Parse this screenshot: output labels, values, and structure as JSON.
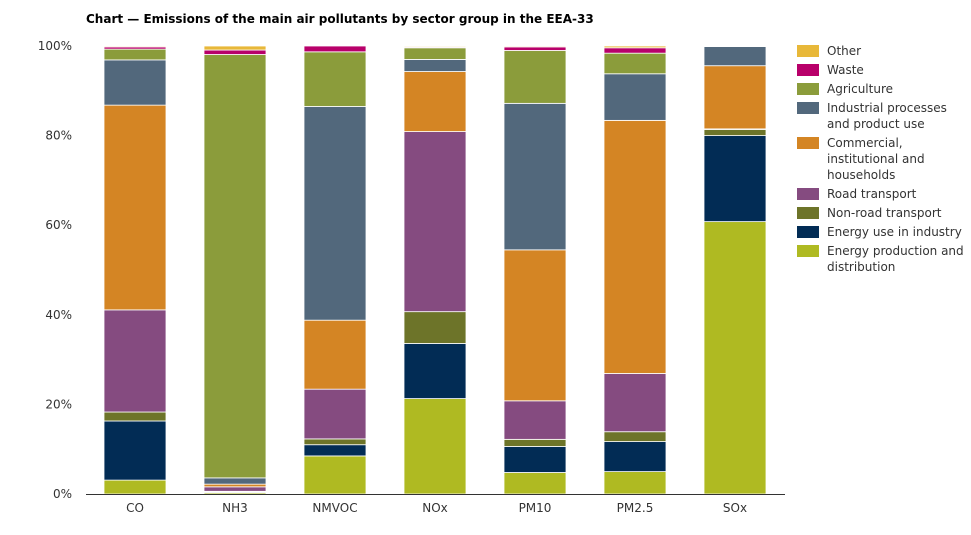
{
  "chart_data": {
    "type": "bar",
    "stacked": true,
    "title": "Chart — Emissions of the main air pollutants by sector group in the EEA-33",
    "xlabel": "",
    "ylabel": "",
    "ylim": [
      0,
      100
    ],
    "yticks": [
      "0%",
      "20%",
      "40%",
      "60%",
      "80%",
      "100%"
    ],
    "ytick_values": [
      0,
      20,
      40,
      60,
      80,
      100
    ],
    "legend_position": "right",
    "categories": [
      "CO",
      "NH3",
      "NMVOC",
      "NOx",
      "PM10",
      "PM2.5",
      "SOx"
    ],
    "series": [
      {
        "name": "Energy production and distribution",
        "color": "#afba22",
        "values": [
          3.1,
          0.3,
          8.5,
          21.3,
          4.8,
          5.0,
          60.8
        ]
      },
      {
        "name": "Energy use in industry",
        "color": "#022c55",
        "values": [
          13.2,
          0.2,
          2.5,
          12.3,
          5.8,
          6.7,
          19.2
        ]
      },
      {
        "name": "Non-road transport",
        "color": "#6d7429",
        "values": [
          2.0,
          0.1,
          1.3,
          7.1,
          1.6,
          2.2,
          1.4
        ]
      },
      {
        "name": "Road transport",
        "color": "#854b80",
        "values": [
          22.8,
          1.0,
          11.1,
          40.2,
          8.6,
          13.0,
          0.1
        ]
      },
      {
        "name": "Commercial, institutional and households",
        "color": "#d48524",
        "values": [
          45.7,
          0.6,
          15.4,
          13.4,
          33.7,
          56.5,
          14.1
        ]
      },
      {
        "name": "Industrial processes and product use",
        "color": "#52687c",
        "values": [
          10.1,
          1.4,
          47.7,
          2.7,
          32.7,
          10.4,
          4.3
        ]
      },
      {
        "name": "Agriculture",
        "color": "#8b9c3b",
        "values": [
          2.4,
          94.5,
          12.2,
          2.6,
          11.8,
          4.6,
          0.0
        ]
      },
      {
        "name": "Waste",
        "color": "#b8006a",
        "values": [
          0.5,
          1.0,
          1.3,
          0.2,
          0.8,
          1.2,
          0.0
        ]
      },
      {
        "name": "Other",
        "color": "#e8b839",
        "values": [
          0.2,
          0.9,
          0.0,
          0.2,
          0.2,
          0.4,
          0.1
        ]
      }
    ],
    "legend": [
      {
        "label": "Other",
        "color": "#e8b839"
      },
      {
        "label": "Waste",
        "color": "#b8006a"
      },
      {
        "label": "Agriculture",
        "color": "#8b9c3b"
      },
      {
        "label": "Industrial processes and product use",
        "color": "#52687c"
      },
      {
        "label": "Commercial, institutional and households",
        "color": "#d48524"
      },
      {
        "label": "Road transport",
        "color": "#854b80"
      },
      {
        "label": "Non-road transport",
        "color": "#6d7429"
      },
      {
        "label": "Energy use in industry",
        "color": "#022c55"
      },
      {
        "label": "Energy production and distribution",
        "color": "#afba22"
      }
    ]
  }
}
